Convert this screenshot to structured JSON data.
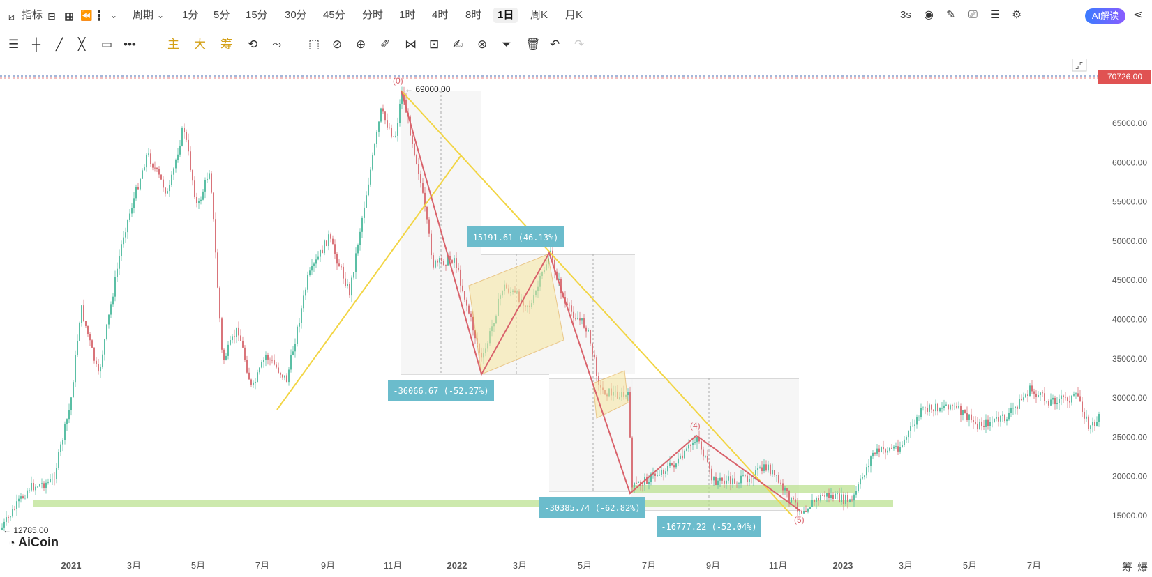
{
  "toolbar": {
    "indicator_label": "指标",
    "period_label": "周期",
    "timeframes": [
      "1分",
      "5分",
      "15分",
      "30分",
      "45分",
      "分时",
      "1时",
      "4时",
      "8时",
      "1日",
      "周K",
      "月K"
    ],
    "active_timeframe": "1日",
    "refresh_label": "3s",
    "ai_label": "AI解读"
  },
  "drawing_tools": {
    "main_label": "主",
    "big_label": "大",
    "chip_label": "筹"
  },
  "chart": {
    "current_price": "70726.00",
    "y_ticks": [
      "65000.00",
      "60000.00",
      "55000.00",
      "50000.00",
      "45000.00",
      "40000.00",
      "35000.00",
      "30000.00",
      "25000.00",
      "20000.00",
      "15000.00"
    ],
    "x_ticks": [
      "2021",
      "3月",
      "5月",
      "7月",
      "9月",
      "11月",
      "2022",
      "3月",
      "5月",
      "7月",
      "9月",
      "11月",
      "2023",
      "3月",
      "5月",
      "7月"
    ],
    "annotations": {
      "high": "← 69000.00",
      "low": "← 12785.00",
      "wave0": "(0)",
      "wave4": "(4)",
      "wave5": "(5)",
      "measure1": "-36066.67 (-52.27%)",
      "measure2": "15191.61 (46.13%)",
      "measure3": "-30385.74 (-62.82%)",
      "measure4": "-16777.22 (-52.04%)"
    },
    "colors": {
      "up": "#5bbfa5",
      "down": "#d9747a",
      "yellow_line": "#f2d544",
      "red_line": "#d9626b",
      "label_bg": "#6bbccc",
      "green_zone": "#b8e08a"
    }
  },
  "logo_text": "AiCoin",
  "bottom_right": {
    "chip": "筹",
    "burst": "爆"
  }
}
